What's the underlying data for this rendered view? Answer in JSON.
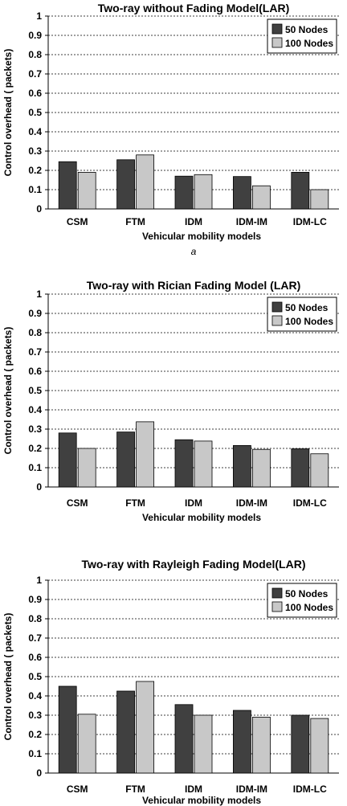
{
  "chart_data": [
    {
      "type": "bar",
      "title": "Two-ray without Fading Model(LAR)",
      "xlabel": "Vehicular mobility models",
      "ylabel": "Control overhead ( packets)",
      "categories": [
        "CSM",
        "FTM",
        "IDM",
        "IDM-IM",
        "IDM-LC"
      ],
      "series": [
        {
          "name": "50 Nodes",
          "values": [
            0.245,
            0.255,
            0.17,
            0.168,
            0.19
          ],
          "color": "#404040"
        },
        {
          "name": "100 Nodes",
          "values": [
            0.19,
            0.28,
            0.178,
            0.12,
            0.1
          ],
          "color": "#c8c8c8"
        }
      ],
      "ylim": [
        0,
        1
      ],
      "yticks": [
        "0",
        "0.1",
        "0.2",
        "0.3",
        "0.4",
        "0.5",
        "0.6",
        "0.7",
        "0.8",
        "0.9",
        "1"
      ],
      "grid": true,
      "legend": "top-right",
      "caption": "a"
    },
    {
      "type": "bar",
      "title": "Two-ray with Rician Fading Model (LAR)",
      "xlabel": "Vehicular mobility models",
      "ylabel": "Control overhead ( packets)",
      "categories": [
        "CSM",
        "FTM",
        "IDM",
        "IDM-IM",
        "IDM-LC"
      ],
      "series": [
        {
          "name": "50 Nodes",
          "values": [
            0.28,
            0.285,
            0.245,
            0.215,
            0.198
          ],
          "color": "#404040"
        },
        {
          "name": "100 Nodes",
          "values": [
            0.2,
            0.338,
            0.238,
            0.195,
            0.172
          ],
          "color": "#c8c8c8"
        }
      ],
      "ylim": [
        0,
        1
      ],
      "yticks": [
        "0",
        "0.1",
        "0.2",
        "0.3",
        "0.4",
        "0.5",
        "0.6",
        "0.7",
        "0.8",
        "0.9",
        "1"
      ],
      "grid": true,
      "legend": "top-right"
    },
    {
      "type": "bar",
      "title": "Two-ray with Rayleigh Fading Model(LAR)",
      "xlabel": "Vehicular mobility models",
      "ylabel": "Control overhead ( packets)",
      "categories": [
        "CSM",
        "FTM",
        "IDM",
        "IDM-IM",
        "IDM-LC"
      ],
      "series": [
        {
          "name": "50 Nodes",
          "values": [
            0.45,
            0.425,
            0.355,
            0.325,
            0.3
          ],
          "color": "#404040"
        },
        {
          "name": "100 Nodes",
          "values": [
            0.305,
            0.475,
            0.3,
            0.29,
            0.283
          ],
          "color": "#c8c8c8"
        }
      ],
      "ylim": [
        0,
        1
      ],
      "yticks": [
        "0",
        "0.1",
        "0.2",
        "0.3",
        "0.4",
        "0.5",
        "0.6",
        "0.7",
        "0.8",
        "0.9",
        "1"
      ],
      "grid": true,
      "legend": "top-right"
    }
  ]
}
